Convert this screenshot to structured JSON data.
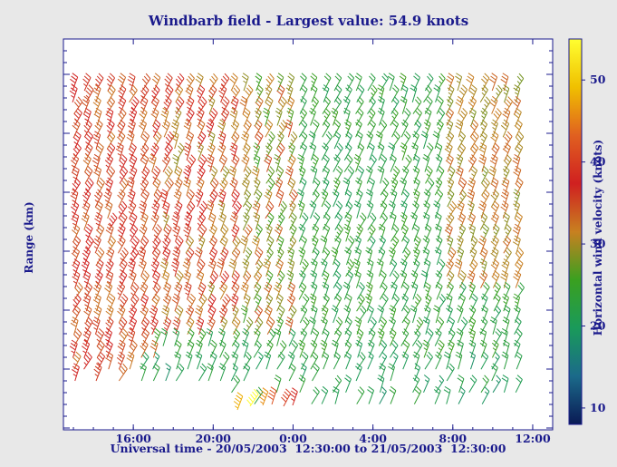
{
  "chart_data": {
    "type": "windbarb",
    "title": "Windbarb field - Largest value: 54.9 knots",
    "xlabel": "Universal time - 20/05/2003  12:30:00 to 21/05/2003  12:30:00",
    "ylabel": "Range (km)",
    "colorbar": {
      "label": "Horizontal wind velocity (knots)",
      "ticks": [
        "10",
        "20",
        "30",
        "40",
        "50"
      ],
      "range": [
        8,
        55
      ],
      "colors": [
        "#0a1a55",
        "#1b6a8a",
        "#1a9a5a",
        "#3aa020",
        "#c88020",
        "#d02020",
        "#e06020",
        "#f0c000",
        "#ffff30"
      ]
    },
    "x_ticks": [
      "16:00",
      "20:00",
      "0:00",
      "4:00",
      "8:00",
      "12:00"
    ],
    "x_tick_hours": [
      16,
      20,
      24,
      28,
      32,
      36
    ],
    "x_range_hours": [
      12.5,
      37.0
    ],
    "max_value_knots": 54.9
  }
}
